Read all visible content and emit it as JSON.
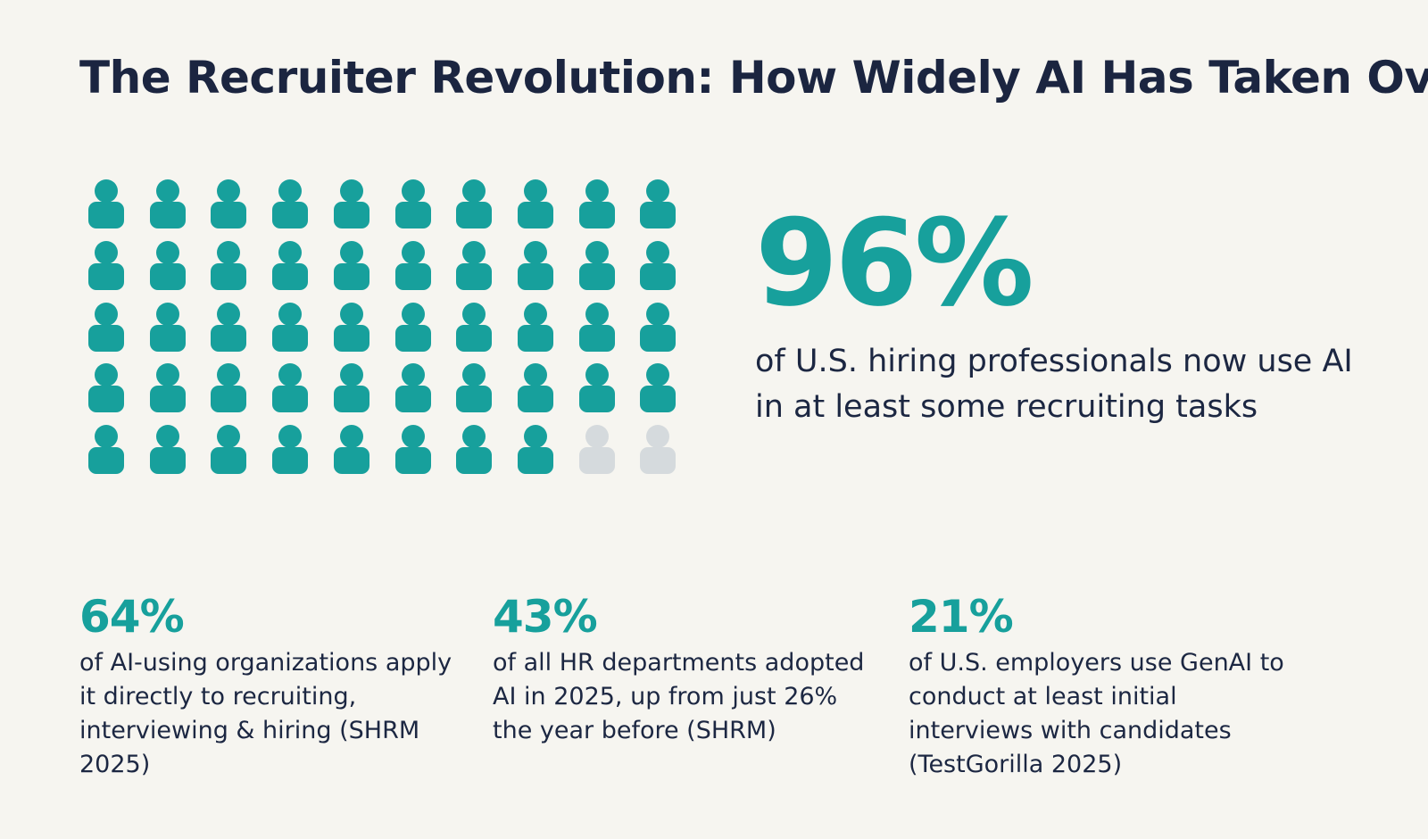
{
  "title": "The Recruiter Revolution: How Widely AI Has Taken Over",
  "colors": {
    "accent": "#17a09c",
    "inactive": "#d5dadd",
    "text": "#1c2742",
    "background": "#f6f5f0"
  },
  "icon_grid": {
    "icon": "person-icon",
    "total": 50,
    "filled": 48
  },
  "hero": {
    "value": "96%",
    "caption": "of U.S. hiring professionals now use AI in at least some recruiting tasks"
  },
  "stats": [
    {
      "value": "64%",
      "description": "of AI-using organizations apply it directly to recruiting, interviewing & hiring (SHRM 2025)"
    },
    {
      "value": "43%",
      "description": "of all HR departments adopted AI in 2025, up from just 26% the year before (SHRM)"
    },
    {
      "value": "21%",
      "description": "of U.S. employers use GenAI to conduct at least initial interviews with candidates (TestGorilla 2025)"
    }
  ]
}
